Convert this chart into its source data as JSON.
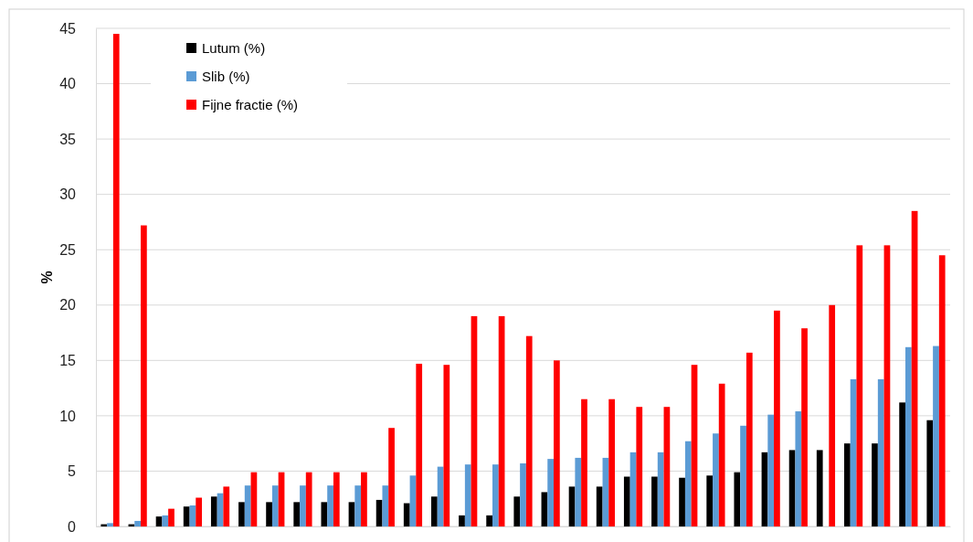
{
  "chart_data": {
    "type": "bar",
    "ylabel": "%",
    "categories": [
      null,
      null,
      null,
      null,
      null,
      null,
      null,
      null,
      null,
      null,
      null,
      null,
      null,
      null,
      null,
      null,
      null,
      null,
      null,
      null,
      null,
      null,
      null,
      null,
      null,
      null,
      null,
      null,
      null,
      null,
      null
    ],
    "series": [
      {
        "name": "Lutum (%)",
        "color": "#000000",
        "values": [
          0.2,
          0.2,
          0.9,
          1.8,
          2.7,
          2.2,
          2.2,
          2.2,
          2.2,
          2.2,
          2.4,
          2.1,
          2.7,
          1.0,
          1.0,
          2.7,
          3.1,
          3.6,
          3.6,
          4.5,
          4.5,
          4.4,
          4.6,
          4.9,
          6.7,
          6.9,
          6.9,
          7.5,
          7.5,
          11.2,
          9.6
        ]
      },
      {
        "name": "Slib (%)",
        "color": "#5b9bd5",
        "values": [
          0.3,
          0.5,
          1.0,
          1.9,
          3.0,
          3.7,
          3.7,
          3.7,
          3.7,
          3.7,
          3.7,
          4.6,
          5.4,
          5.6,
          5.6,
          5.7,
          6.1,
          6.2,
          6.2,
          6.7,
          6.7,
          7.7,
          8.4,
          9.1,
          10.1,
          10.4,
          null,
          13.3,
          13.3,
          16.2,
          16.3
        ]
      },
      {
        "name": "Fijne fractie (%)",
        "color": "#ff0000",
        "values": [
          44.5,
          27.2,
          1.6,
          2.6,
          3.6,
          4.9,
          4.9,
          4.9,
          4.9,
          4.9,
          8.9,
          14.7,
          14.6,
          19.0,
          19.0,
          17.2,
          15.0,
          11.5,
          11.5,
          10.8,
          10.8,
          14.6,
          12.9,
          15.7,
          19.5,
          17.9,
          20.0,
          25.4,
          25.4,
          28.5,
          24.5
        ]
      }
    ],
    "ylim": [
      0,
      45
    ],
    "yticks": [
      0,
      5,
      10,
      15,
      20,
      25,
      30,
      35,
      40,
      45
    ],
    "grid": "y",
    "legend": "top left"
  }
}
